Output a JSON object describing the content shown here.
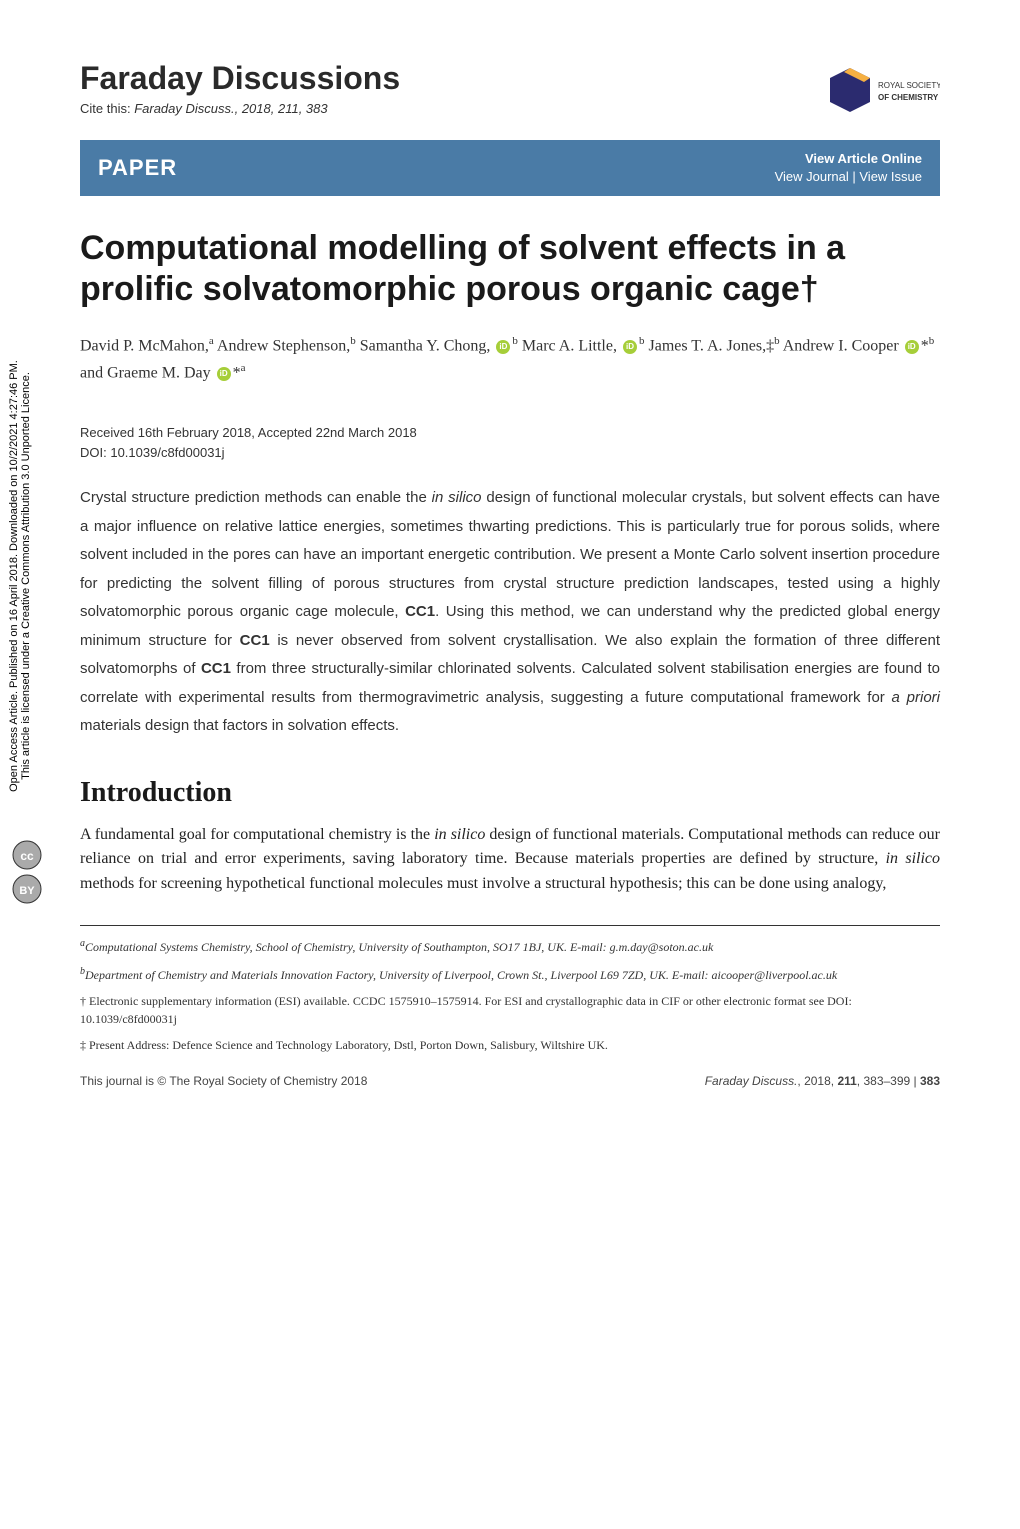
{
  "journal_title": "Faraday Discussions",
  "cite_prefix": "Cite this: ",
  "cite_text": "Faraday Discuss., 2018, 211, 383",
  "rsc_logo": {
    "line1": "ROYAL SOCIETY",
    "line2": "OF CHEMISTRY",
    "hex_fill": "#2b2b6f",
    "hex_accent": "#f6b042"
  },
  "paper_bar": {
    "label": "PAPER",
    "link_top": "View Article Online",
    "link_bottom": "View Journal | View Issue",
    "bg": "#4a7ba6"
  },
  "article_title": "Computational modelling of solvent effects in a prolific solvatomorphic porous organic cage†",
  "authors_html": "David P. McMahon,<sup>a</sup> Andrew Stephenson,<sup>b</sup> Samantha Y. Chong, <span class='orcid'></span><sup>b</sup> Marc A. Little, <span class='orcid'></span><sup>b</sup> James T. A. Jones,‡<sup>b</sup> Andrew I. Cooper <span class='orcid'></span>*<sup>b</sup> and Graeme M. Day <span class='orcid'></span>*<sup>a</sup>",
  "dates_line": "Received 16th February 2018, Accepted 22nd March 2018",
  "doi_line": "DOI: 10.1039/c8fd00031j",
  "abstract_html": "Crystal structure prediction methods can enable the <i>in silico</i> design of functional molecular crystals, but solvent effects can have a major influence on relative lattice energies, sometimes thwarting predictions. This is particularly true for porous solids, where solvent included in the pores can have an important energetic contribution. We present a Monte Carlo solvent insertion procedure for predicting the solvent filling of porous structures from crystal structure prediction landscapes, tested using a highly solvatomorphic porous organic cage molecule, <b>CC1</b>. Using this method, we can understand why the predicted global energy minimum structure for <b>CC1</b> is never observed from solvent crystallisation. We also explain the formation of three different solvatomorphs of <b>CC1</b> from three structurally-similar chlorinated solvents. Calculated solvent stabilisation energies are found to correlate with experimental results from thermogravimetric analysis, suggesting a future computational framework for <i>a priori</i> materials design that factors in solvation effects.",
  "section_heading": "Introduction",
  "intro_html": "A fundamental goal for computational chemistry is the <i>in silico</i> design of functional materials. Computational methods can reduce our reliance on trial and error experiments, saving laboratory time. Because materials properties are defined by structure, <i>in silico</i> methods for screening hypothetical functional molecules must involve a structural hypothesis; this can be done using analogy,",
  "footnotes": {
    "a": "<sup>a</sup>Computational Systems Chemistry, School of Chemistry, University of Southampton, SO17 1BJ, UK. E-mail: g.m.day@soton.ac.uk",
    "b": "<sup>b</sup>Department of Chemistry and Materials Innovation Factory, University of Liverpool, Crown St., Liverpool L69 7ZD, UK. E-mail: aicooper@liverpool.ac.uk",
    "dag": "† Electronic supplementary information (ESI) available. CCDC 1575910–1575914. For ESI and crystallographic data in CIF or other electronic format see DOI: 10.1039/c8fd00031j",
    "ddag": "‡ Present Address: Defence Science and Technology Laboratory, Dstl, Porton Down, Salisbury, Wiltshire UK."
  },
  "footer": {
    "left": "This journal is © The Royal Society of Chemistry 2018",
    "right_html": "<i>Faraday Discuss.</i>, 2018, <b>211</b>, 383–399 | <b>383</b>"
  },
  "sidebar": {
    "line1": "Open Access Article. Published on 16 April 2018. Downloaded on 10/2/2021 4:27:46 PM.",
    "line2": "This article is licensed under a Creative Commons Attribution 3.0 Unported Licence."
  },
  "colors": {
    "bar_bg": "#4a7ba6",
    "orcid_green": "#a6ce39",
    "text": "#333333"
  }
}
